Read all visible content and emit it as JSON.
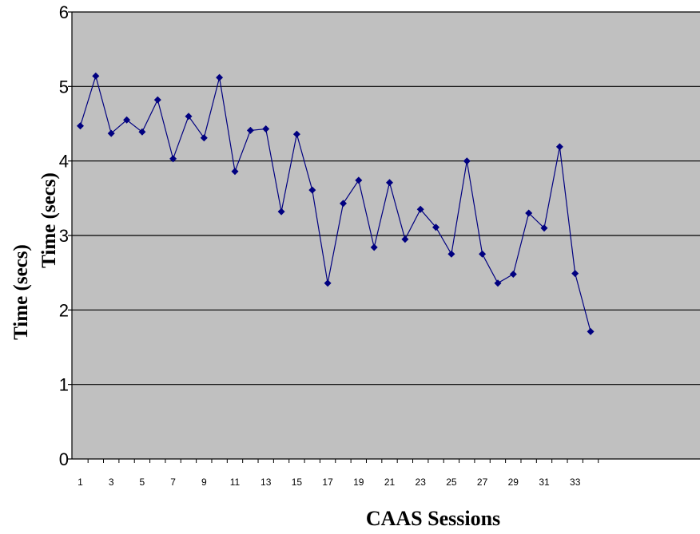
{
  "chart_data": {
    "type": "line",
    "title": "",
    "xlabel": "CAAS Sessions",
    "ylabel": "Time (secs)",
    "ylabel_overlay": "Time (secs)",
    "ylim": [
      0,
      6
    ],
    "yticks": [
      "0",
      "1",
      "2",
      "3",
      "4",
      "5",
      "6"
    ],
    "xticks": [
      "1",
      "3",
      "5",
      "7",
      "9",
      "11",
      "13",
      "15",
      "17",
      "19",
      "21",
      "23",
      "25",
      "27",
      "29",
      "31",
      "33"
    ],
    "x": [
      1,
      2,
      3,
      4,
      5,
      6,
      7,
      8,
      9,
      10,
      11,
      12,
      13,
      14,
      15,
      16,
      17,
      18,
      19,
      20,
      21,
      22,
      23,
      24,
      25,
      26,
      27,
      28,
      29,
      30,
      31,
      32,
      33,
      34
    ],
    "series": [
      {
        "values": [
          4.47,
          5.14,
          4.37,
          4.55,
          4.39,
          4.82,
          4.03,
          4.6,
          4.31,
          5.12,
          3.86,
          4.41,
          4.43,
          3.32,
          4.36,
          3.61,
          2.36,
          3.43,
          3.74,
          2.84,
          3.71,
          2.95,
          3.35,
          3.11,
          2.75,
          4.0,
          2.75,
          2.36,
          2.48,
          3.3,
          3.1,
          4.19,
          2.49,
          1.71
        ],
        "color": "#000080"
      }
    ],
    "grid": true,
    "grid_lines": "horizontal",
    "plot_background": "#c0c0c0",
    "legend": "none"
  }
}
